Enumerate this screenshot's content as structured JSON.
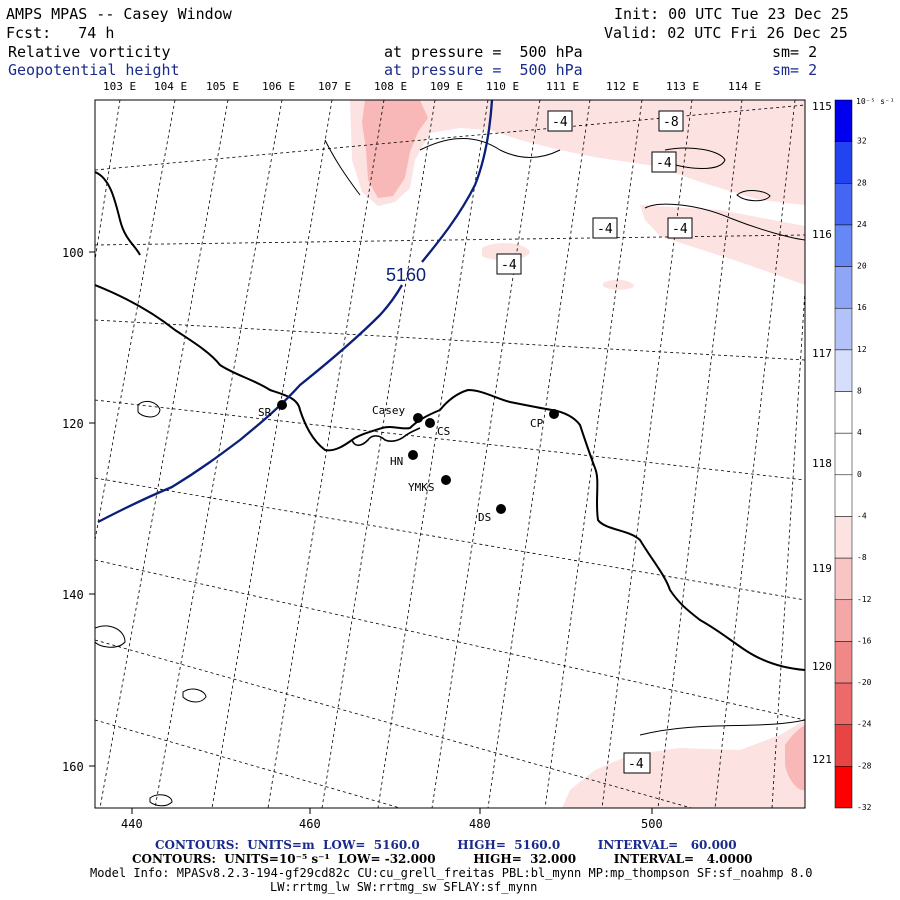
{
  "header": {
    "title": "AMPS MPAS -- Casey Window",
    "fcst": "Fcst:   74 h",
    "init": "Init: 00 UTC Tue 23 Dec 25",
    "valid": "Valid: 02 UTC Fri 26 Dec 25",
    "field1_name": "Relative vorticity",
    "field1_level": "at pressure =  500 hPa",
    "field1_sm": "sm= 2",
    "field2_name": "Geopotential height",
    "field2_level": "at pressure =  500 hPa",
    "field2_sm": "sm= 2"
  },
  "map": {
    "top_longitudes": [
      "103 E",
      "104 E",
      "105 E",
      "106 E",
      "107 E",
      "108 E",
      "109 E",
      "110 E",
      "111 E",
      "112 E",
      "113 E",
      "114 E"
    ],
    "right_longitudes": [
      "115 E",
      "116 E",
      "117 E",
      "118 E",
      "119 E",
      "120 E",
      "121 E"
    ],
    "x_ticks": [
      "440",
      "460",
      "480",
      "500"
    ],
    "y_ticks": [
      "100",
      "120",
      "140",
      "160"
    ],
    "height_contour_label": "5160",
    "vorticity_labels": [
      "-4",
      "-8",
      "-4",
      "-4",
      "-4",
      "-4",
      "-4"
    ],
    "stations": [
      "SR",
      "Casey",
      "CS",
      "CP",
      "HN",
      "YMKS",
      "DS"
    ],
    "colors": {
      "height_contour": "#0a1f7a",
      "coastline": "#000000",
      "negative_vorticity_light": "#fde2e2",
      "negative_vorticity_medium": "#f9b8b8"
    }
  },
  "colorbar": {
    "units": "10⁻⁵ s⁻¹",
    "labels": [
      "32",
      "28",
      "24",
      "20",
      "16",
      "12",
      "8",
      "4",
      "0",
      "-4",
      "-8",
      "-12",
      "-16",
      "-20",
      "-24",
      "-28",
      "-32"
    ],
    "colors": [
      "#0000ee",
      "#2244f0",
      "#4466f2",
      "#6688f4",
      "#8fa6f6",
      "#b3c2f9",
      "#d6defc",
      "#ffffff",
      "#ffffff",
      "#ffffff",
      "#fde2e2",
      "#f9c4c4",
      "#f5a6a6",
      "#f18888",
      "#ed6a6a",
      "#e94444",
      "#ff0000"
    ]
  },
  "footer": {
    "contours1": "CONTOURS:  UNITS=m  LOW=  5160.0         HIGH=  5160.0         INTERVAL=   60.000",
    "contours2": "CONTOURS:  UNITS=10⁻⁵ s⁻¹  LOW= -32.000         HIGH=  32.000         INTERVAL=   4.0000",
    "model_info": "Model Info: MPASv8.2.3-194-gf29cd82c CU:cu_grell_freitas PBL:bl_mynn MP:mp_thompson SF:sf_noahmp 8.0",
    "model_info2": "LW:rrtmg_lw SW:rrtmg_sw SFLAY:sf_mynn"
  }
}
